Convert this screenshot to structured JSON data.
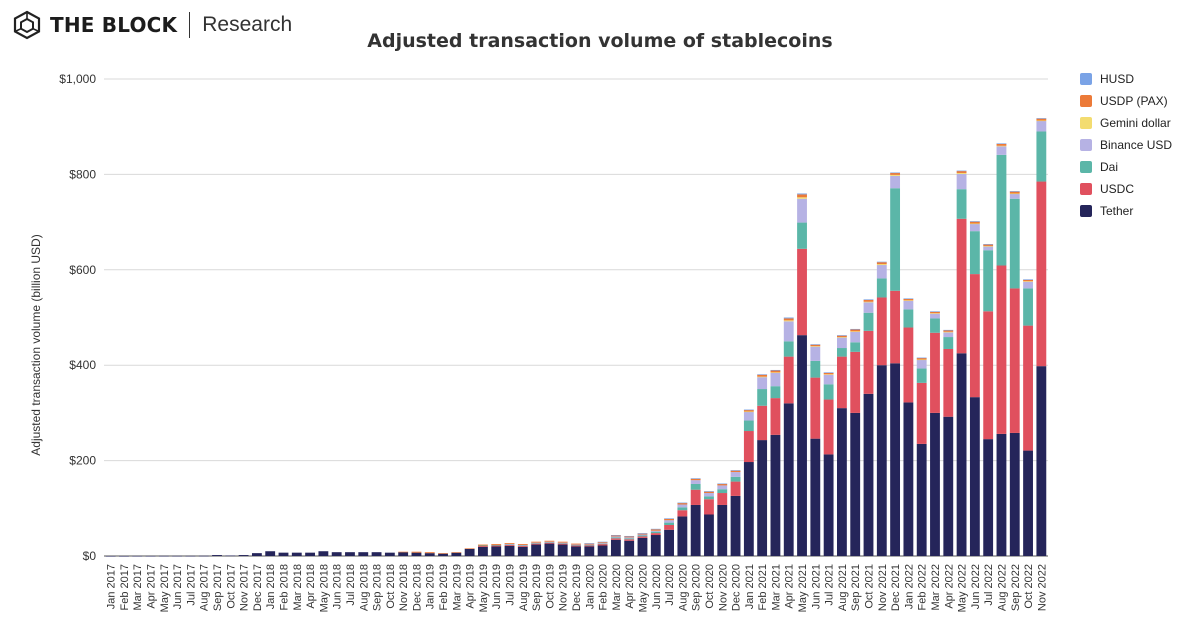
{
  "brand": {
    "name": "THE BLOCK",
    "sub": "Research"
  },
  "chart_data": {
    "type": "bar",
    "stacked": true,
    "title": "Adjusted transaction volume of stablecoins",
    "ylabel": "Adjusted transaction volume (billion USD)",
    "xlabel": "",
    "ylim": [
      0,
      1000
    ],
    "yticks": [
      0,
      200,
      400,
      600,
      800,
      1000
    ],
    "ytick_labels": [
      "$0",
      "$200",
      "$400",
      "$600",
      "$800",
      "$1,000"
    ],
    "grid": true,
    "legend_position": "right",
    "categories": [
      "Jan 2017",
      "Feb 2017",
      "Mar 2017",
      "Apr 2017",
      "May 2017",
      "Jun 2017",
      "Jul 2017",
      "Aug 2017",
      "Sep 2017",
      "Oct 2017",
      "Nov 2017",
      "Dec 2017",
      "Jan 2018",
      "Feb 2018",
      "Mar 2018",
      "Apr 2018",
      "May 2018",
      "Jun 2018",
      "Jul 2018",
      "Aug 2018",
      "Sep 2018",
      "Oct 2018",
      "Nov 2018",
      "Dec 2018",
      "Jan 2019",
      "Feb 2019",
      "Mar 2019",
      "Apr 2019",
      "May 2019",
      "Jun 2019",
      "Jul 2019",
      "Aug 2019",
      "Sep 2019",
      "Oct 2019",
      "Nov 2019",
      "Dec 2019",
      "Jan 2020",
      "Feb 2020",
      "Mar 2020",
      "Apr 2020",
      "May 2020",
      "Jun 2020",
      "Jul 2020",
      "Aug 2020",
      "Sep 2020",
      "Oct 2020",
      "Nov 2020",
      "Dec 2020",
      "Jan 2021",
      "Feb 2021",
      "Mar 2021",
      "Apr 2021",
      "May 2021",
      "Jun 2021",
      "Jul 2021",
      "Aug 2021",
      "Sep 2021",
      "Oct 2021",
      "Nov 2021",
      "Dec 2021",
      "Jan 2022",
      "Feb 2022",
      "Mar 2022",
      "Apr 2022",
      "May 2022",
      "Jun 2022",
      "Jul 2022",
      "Aug 2022",
      "Sep 2022",
      "Oct 2022",
      "Nov 2022"
    ],
    "series": [
      {
        "name": "Tether",
        "color": "#25255a",
        "values": [
          0.1,
          0.1,
          0.2,
          0.2,
          0.3,
          0.3,
          0.3,
          0.5,
          2,
          1,
          2,
          6,
          10,
          7,
          7,
          7,
          10,
          8,
          8,
          8,
          8,
          7,
          8,
          7,
          6,
          5,
          7,
          15,
          19,
          20,
          21,
          19,
          24,
          26,
          24,
          20,
          20,
          22,
          34,
          32,
          38,
          44,
          55,
          83,
          107,
          87,
          107,
          126,
          197,
          243,
          254,
          320,
          463,
          246,
          213,
          310,
          300,
          340,
          400,
          404,
          322,
          235,
          300,
          292,
          425,
          333,
          245,
          256,
          258,
          221,
          398
        ]
      },
      {
        "name": "USDC",
        "color": "#e0505e",
        "values": [
          0,
          0,
          0,
          0,
          0,
          0,
          0,
          0,
          0,
          0,
          0,
          0,
          0,
          0,
          0,
          0,
          0,
          0,
          0,
          0,
          0,
          0,
          0,
          0,
          0,
          0,
          0,
          0,
          2,
          2,
          2,
          2,
          2,
          2,
          2,
          2,
          2,
          3,
          3,
          3,
          3,
          4,
          10,
          13,
          32,
          32,
          25,
          30,
          65,
          72,
          77,
          98,
          181,
          128,
          115,
          108,
          128,
          132,
          142,
          152,
          157,
          128,
          168,
          142,
          282,
          258,
          268,
          353,
          303,
          262,
          387
        ]
      },
      {
        "name": "Dai",
        "color": "#5bb6a8",
        "values": [
          0,
          0,
          0,
          0,
          0,
          0,
          0,
          0,
          0,
          0,
          0,
          0,
          0,
          0,
          0,
          0,
          0,
          0,
          0,
          0,
          0,
          0,
          0,
          0,
          0,
          0,
          0,
          0,
          1,
          1,
          1,
          1,
          1,
          1,
          1,
          1,
          1,
          1,
          2,
          2,
          2,
          3,
          5,
          6,
          12,
          6,
          8,
          10,
          22,
          35,
          25,
          32,
          55,
          35,
          32,
          18,
          20,
          38,
          40,
          215,
          38,
          30,
          30,
          25,
          62,
          90,
          128,
          232,
          188,
          78,
          105
        ]
      },
      {
        "name": "Binance USD",
        "color": "#b6b2e4",
        "values": [
          0,
          0,
          0,
          0,
          0,
          0,
          0,
          0,
          0,
          0,
          0,
          0,
          0,
          0,
          0,
          0,
          0,
          0,
          0,
          0,
          0,
          0,
          0,
          0,
          0,
          0,
          0,
          0,
          0,
          0,
          1,
          1,
          1,
          1,
          1,
          1,
          1,
          1,
          2,
          2,
          2,
          2,
          5,
          6,
          8,
          7,
          8,
          10,
          18,
          25,
          28,
          42,
          50,
          30,
          20,
          22,
          22,
          22,
          28,
          26,
          18,
          18,
          10,
          10,
          32,
          15,
          8,
          18,
          10,
          14,
          22
        ]
      },
      {
        "name": "Gemini dollar",
        "color": "#f3dc70",
        "values": [
          0,
          0,
          0,
          0,
          0,
          0,
          0,
          0,
          0,
          0,
          0,
          0,
          0,
          0,
          0,
          0,
          0,
          0,
          0,
          0,
          0,
          0,
          0,
          0,
          0,
          0,
          0,
          0,
          0,
          0,
          0,
          0,
          0,
          0,
          0,
          0,
          0,
          0,
          0,
          0,
          0,
          0,
          0,
          0,
          0,
          0,
          0,
          0,
          1,
          1,
          1,
          2,
          3,
          1,
          1,
          1,
          1,
          1,
          2,
          2,
          1,
          1,
          1,
          1,
          2,
          1,
          1,
          1,
          1,
          1,
          1
        ]
      },
      {
        "name": "USDP (PAX)",
        "color": "#ec7a38",
        "values": [
          0,
          0,
          0,
          0,
          0,
          0,
          0,
          0,
          0,
          0,
          0,
          0,
          0,
          0,
          0,
          0,
          0,
          0,
          0,
          0,
          0,
          0,
          1,
          2,
          2,
          1,
          1,
          1,
          2,
          2,
          2,
          2,
          2,
          2,
          2,
          2,
          2,
          2,
          2,
          2,
          2,
          3,
          3,
          3,
          3,
          3,
          3,
          3,
          3,
          4,
          4,
          4,
          6,
          3,
          3,
          3,
          4,
          4,
          4,
          4,
          3,
          3,
          3,
          3,
          4,
          4,
          3,
          4,
          4,
          3,
          4
        ]
      },
      {
        "name": "HUSD",
        "color": "#7aa3e6",
        "values": [
          0,
          0,
          0,
          0,
          0,
          0,
          0,
          0,
          0,
          0,
          0,
          0,
          0,
          0,
          0,
          0,
          0,
          0,
          0,
          0,
          0,
          0,
          0,
          0,
          0,
          0,
          0,
          0,
          0,
          0,
          0,
          0,
          0,
          0,
          0,
          0,
          1,
          1,
          1,
          1,
          1,
          1,
          1,
          1,
          1,
          1,
          1,
          1,
          1,
          1,
          1,
          2,
          2,
          1,
          1,
          1,
          1,
          1,
          1,
          1,
          1,
          1,
          1,
          1,
          1,
          1,
          1,
          1,
          1,
          1,
          1
        ]
      }
    ],
    "legend_order": [
      "HUSD",
      "USDP (PAX)",
      "Gemini dollar",
      "Binance USD",
      "Dai",
      "USDC",
      "Tether"
    ]
  }
}
